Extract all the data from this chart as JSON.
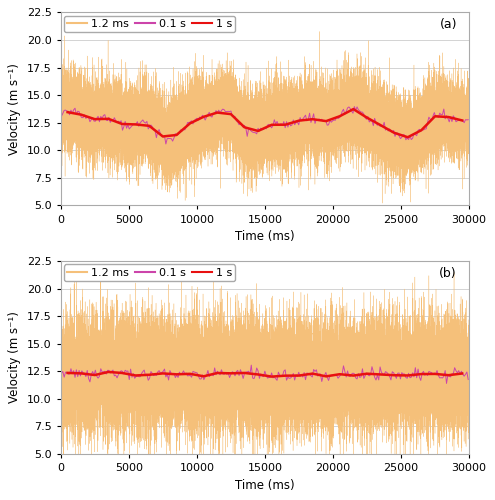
{
  "mean_a": 12.5,
  "std_a": 1.8,
  "mean_b": 12.2,
  "std_b": 2.5,
  "n_fine": 25000,
  "t_max": 30000,
  "color_fine": "#F5C07A",
  "color_medium": "#CC44AA",
  "color_coarse": "#E81010",
  "ylim": [
    5,
    22.5
  ],
  "yticks": [
    5,
    7.5,
    10,
    12.5,
    15,
    17.5,
    20,
    22.5
  ],
  "xlim": [
    0,
    30000
  ],
  "xticks": [
    0,
    5000,
    10000,
    15000,
    20000,
    25000,
    30000
  ],
  "xlabel": "Time (ms)",
  "ylabel": "Velocity (m s⁻¹)",
  "legend_labels": [
    "1.2 ms",
    "0.1 s",
    "1 s"
  ],
  "label_a": "(a)",
  "label_b": "(b)",
  "seed_a": 42,
  "seed_b": 99,
  "fine_lw": 0.25,
  "medium_lw": 0.7,
  "coarse_lw": 1.8
}
